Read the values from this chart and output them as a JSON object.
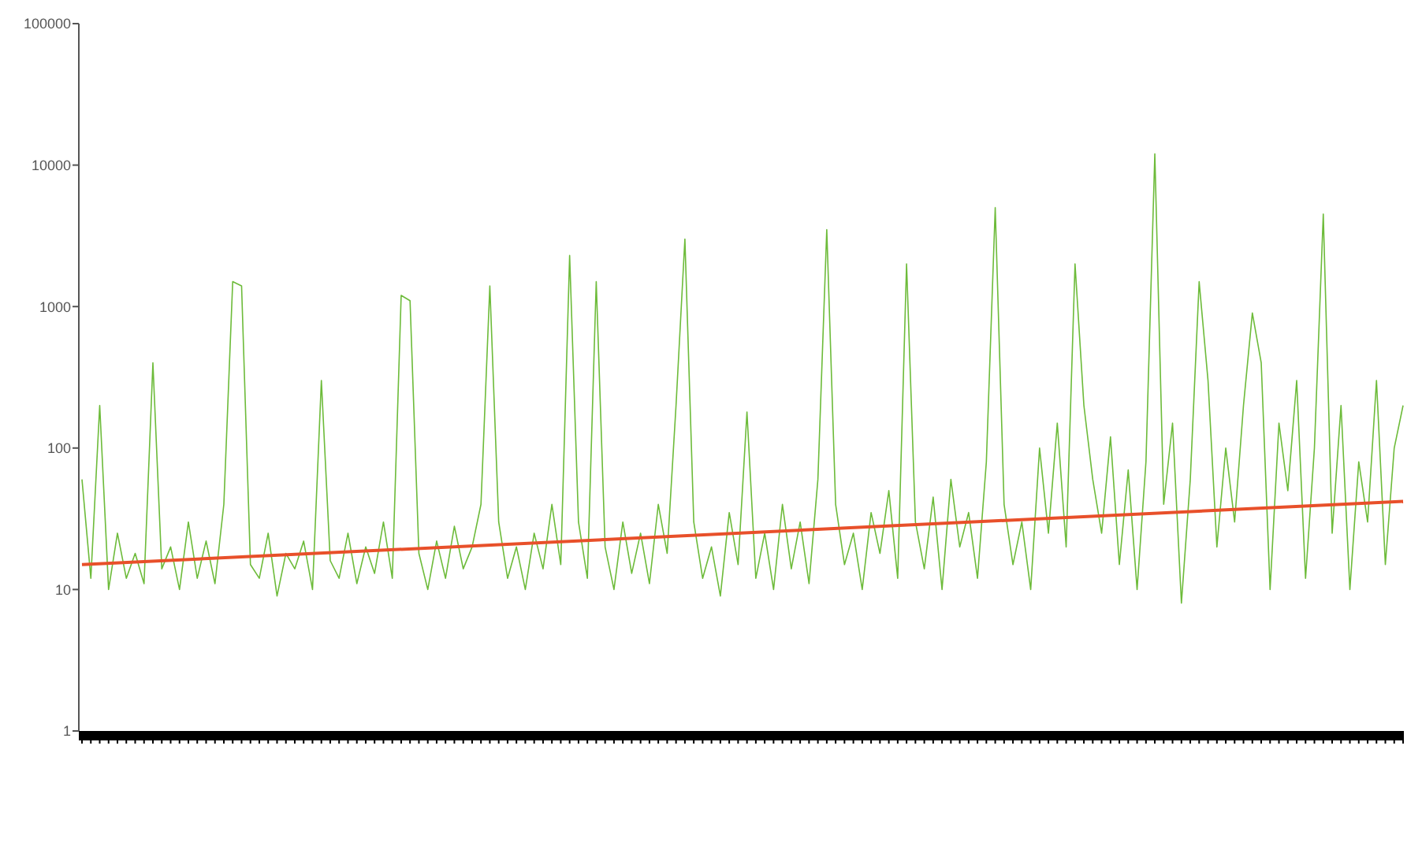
{
  "chart_data": {
    "type": "line",
    "categories": [
      null,
      null,
      null,
      null,
      null,
      null,
      null,
      null,
      null,
      null,
      null,
      null,
      null,
      null,
      null,
      null,
      null,
      null,
      null,
      null,
      null,
      null,
      null,
      null,
      null,
      null,
      null,
      null,
      null,
      null,
      null,
      null,
      null,
      null,
      null,
      null,
      null,
      null,
      null,
      null,
      null,
      null,
      null,
      null,
      null,
      null,
      null,
      null,
      null,
      null,
      null,
      null,
      null,
      null,
      null,
      null,
      null,
      null,
      null,
      null,
      null,
      null,
      null,
      null,
      null,
      null,
      null,
      null,
      null,
      null,
      null,
      null,
      null,
      null,
      null,
      null,
      null,
      null,
      null,
      null,
      null,
      null,
      null,
      null,
      null,
      null,
      null,
      null,
      null,
      null,
      null,
      null,
      null,
      null,
      null,
      null,
      null,
      null,
      null,
      null,
      null,
      null,
      null,
      null,
      null,
      null,
      null,
      null,
      null,
      null,
      null,
      null,
      null,
      null,
      null,
      null,
      null,
      null,
      null,
      null,
      null,
      null,
      null,
      null,
      null,
      null,
      null,
      null,
      null,
      null,
      null,
      null,
      null,
      null,
      null,
      null,
      null,
      null,
      null,
      null,
      null,
      null,
      null,
      null,
      null,
      null,
      null,
      null,
      null,
      null
    ],
    "series": [
      {
        "color": "#6dbb3a",
        "values": [
          60,
          12,
          200,
          10,
          25,
          12,
          18,
          11,
          400,
          14,
          20,
          10,
          30,
          12,
          22,
          11,
          40,
          1500,
          1400,
          15,
          12,
          25,
          9,
          18,
          14,
          22,
          10,
          300,
          16,
          12,
          25,
          11,
          20,
          13,
          30,
          12,
          1200,
          1100,
          18,
          10,
          22,
          12,
          28,
          14,
          20,
          40,
          1400,
          30,
          12,
          20,
          10,
          25,
          14,
          40,
          15,
          2300,
          30,
          12,
          1500,
          20,
          10,
          30,
          13,
          25,
          11,
          40,
          18,
          200,
          3000,
          30,
          12,
          20,
          9,
          35,
          15,
          180,
          12,
          25,
          10,
          40,
          14,
          30,
          11,
          60,
          3500,
          40,
          15,
          25,
          10,
          35,
          18,
          50,
          12,
          2000,
          30,
          14,
          45,
          10,
          60,
          20,
          35,
          12,
          80,
          5000,
          40,
          15,
          30,
          10,
          100,
          25,
          150,
          20,
          2000,
          200,
          60,
          25,
          120,
          15,
          70,
          10,
          80,
          12000,
          40,
          150,
          8,
          60,
          1500,
          300,
          20,
          100,
          30,
          200,
          900,
          400,
          10,
          150,
          50,
          300,
          12,
          100,
          4500,
          25,
          200,
          10,
          80,
          30,
          300,
          15,
          100,
          200
        ]
      },
      {
        "color": "#e8502a",
        "values": [
          15,
          null,
          null,
          null,
          null,
          null,
          null,
          null,
          null,
          null,
          null,
          null,
          null,
          null,
          null,
          null,
          null,
          null,
          null,
          null,
          null,
          null,
          null,
          null,
          null,
          null,
          null,
          null,
          null,
          null,
          null,
          null,
          null,
          null,
          null,
          null,
          null,
          null,
          null,
          null,
          null,
          null,
          null,
          null,
          null,
          null,
          null,
          null,
          null,
          null,
          null,
          null,
          null,
          null,
          null,
          null,
          null,
          null,
          null,
          null,
          null,
          null,
          null,
          null,
          null,
          null,
          null,
          null,
          null,
          null,
          null,
          null,
          null,
          null,
          null,
          null,
          null,
          null,
          null,
          null,
          null,
          null,
          null,
          null,
          null,
          null,
          null,
          null,
          null,
          null,
          null,
          null,
          null,
          null,
          null,
          null,
          null,
          null,
          null,
          null,
          null,
          null,
          null,
          null,
          null,
          null,
          null,
          null,
          null,
          null,
          null,
          null,
          null,
          null,
          null,
          null,
          null,
          null,
          null,
          null,
          null,
          null,
          null,
          null,
          null,
          null,
          null,
          null,
          null,
          null,
          null,
          null,
          null,
          null,
          null,
          null,
          null,
          null,
          null,
          null,
          null,
          null,
          null,
          null,
          null,
          null,
          null,
          null,
          null,
          42
        ]
      }
    ],
    "log": "y",
    "ylim": [
      1,
      100000
    ],
    "yticks": [
      1,
      10,
      100,
      1000,
      10000,
      100000
    ],
    "grid": false,
    "marker": "none",
    "line_style": "solid"
  }
}
